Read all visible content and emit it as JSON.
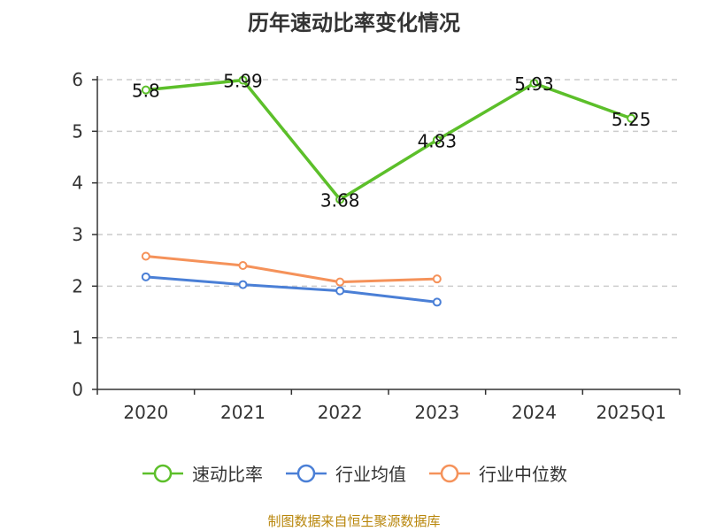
{
  "title": "历年速动比率变化情况",
  "source": "制图数据来自恒生聚源数据库",
  "chart_data": {
    "type": "line",
    "categories": [
      "2020",
      "2021",
      "2022",
      "2023",
      "2024",
      "2025Q1"
    ],
    "ylim": [
      0,
      6
    ],
    "yticks": [
      0,
      1,
      2,
      3,
      4,
      5,
      6
    ],
    "grid": true,
    "legend_position": "bottom",
    "series": [
      {
        "name": "速动比率",
        "color": "#5cbf2a",
        "values": [
          5.8,
          5.99,
          3.68,
          4.83,
          5.93,
          5.25
        ],
        "labels": [
          "5.8",
          "5.99",
          "3.68",
          "4.83",
          "5.93",
          "5.25"
        ],
        "show_labels": true
      },
      {
        "name": "行业均值",
        "color": "#4a7fd6",
        "values": [
          2.18,
          2.03,
          1.91,
          1.69,
          null,
          null
        ],
        "show_labels": false
      },
      {
        "name": "行业中位数",
        "color": "#f5925a",
        "values": [
          2.58,
          2.4,
          2.08,
          2.14,
          null,
          null
        ],
        "show_labels": false
      }
    ]
  }
}
